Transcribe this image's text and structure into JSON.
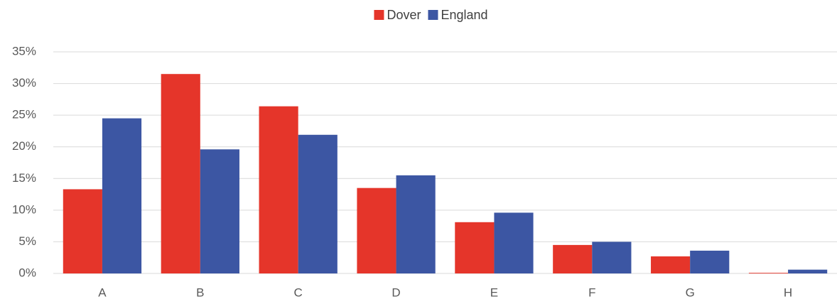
{
  "chart_data": {
    "type": "bar",
    "categories": [
      "A",
      "B",
      "C",
      "D",
      "E",
      "F",
      "G",
      "H"
    ],
    "series": [
      {
        "name": "Dover",
        "color": "#e5352a",
        "values": [
          13.3,
          31.5,
          26.4,
          13.5,
          8.1,
          4.5,
          2.7,
          0.1
        ]
      },
      {
        "name": "England",
        "color": "#3c56a3",
        "values": [
          24.5,
          19.6,
          21.9,
          15.5,
          9.6,
          5.0,
          3.6,
          0.6
        ]
      }
    ],
    "ylim": [
      0,
      35
    ],
    "yticks": [
      {
        "value": 0,
        "label": "0%"
      },
      {
        "value": 5,
        "label": "5%"
      },
      {
        "value": 10,
        "label": "10%"
      },
      {
        "value": 15,
        "label": "15%"
      },
      {
        "value": 20,
        "label": "20%"
      },
      {
        "value": 25,
        "label": "25%"
      },
      {
        "value": 30,
        "label": "30%"
      },
      {
        "value": 35,
        "label": "35%"
      }
    ],
    "grid": true,
    "legend": "top"
  }
}
